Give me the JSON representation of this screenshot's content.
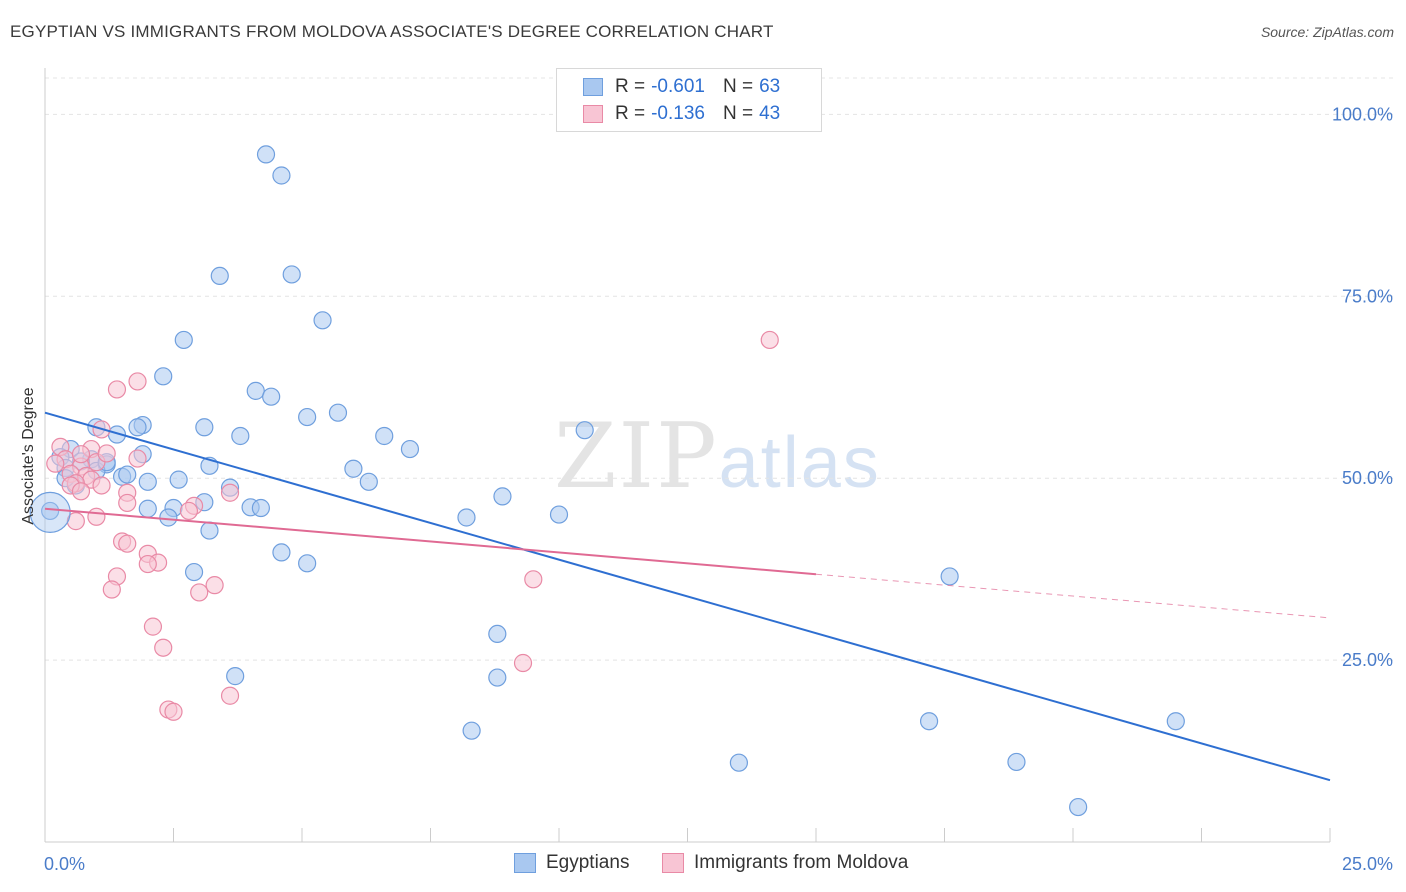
{
  "header": {
    "title": "EGYPTIAN VS IMMIGRANTS FROM MOLDOVA ASSOCIATE'S DEGREE CORRELATION CHART",
    "source": "Source: ZipAtlas.com"
  },
  "watermark": {
    "zip": "ZIP",
    "atlas": "atlas"
  },
  "legend": {
    "rows": [
      {
        "r_label": "R =",
        "r_value": "-0.601",
        "n_label": "N =",
        "n_value": "63",
        "color": "#a9c8f0",
        "border": "#6f9fde"
      },
      {
        "r_label": "R =",
        "r_value": "-0.136",
        "n_label": "N =",
        "n_value": "43",
        "color": "#f8c5d4",
        "border": "#e98aa6"
      }
    ]
  },
  "bottom_legend": [
    {
      "label": "Egyptians",
      "color": "#a9c8f0",
      "border": "#6f9fde"
    },
    {
      "label": "Immigrants from Moldova",
      "color": "#f8c5d4",
      "border": "#e98aa6"
    }
  ],
  "chart_data": {
    "type": "scatter",
    "title": "EGYPTIAN VS IMMIGRANTS FROM MOLDOVA ASSOCIATE'S DEGREE CORRELATION CHART",
    "xlabel": "",
    "ylabel": "Associate's Degree",
    "xlim": [
      0,
      25
    ],
    "ylim": [
      0,
      105
    ],
    "x_tick_labels": [
      "0.0%",
      "25.0%"
    ],
    "y_ticks": [
      25,
      50,
      75,
      100
    ],
    "y_tick_labels": [
      "25.0%",
      "50.0%",
      "75.0%",
      "100.0%"
    ],
    "grid": true,
    "legend_position": "top-center",
    "series": [
      {
        "name": "Egyptians",
        "color": "#a9c8f0",
        "edge": "#6f9fde",
        "trend": {
          "x": [
            0,
            25
          ],
          "y": [
            59.0,
            8.5
          ],
          "color": "#2e6fd1"
        },
        "points": [
          [
            4.3,
            94.5
          ],
          [
            4.6,
            91.6
          ],
          [
            3.4,
            77.8
          ],
          [
            4.8,
            78.0
          ],
          [
            5.4,
            71.7
          ],
          [
            2.7,
            69.0
          ],
          [
            2.3,
            64.0
          ],
          [
            4.1,
            62.0
          ],
          [
            4.4,
            61.2
          ],
          [
            5.7,
            59.0
          ],
          [
            5.1,
            58.4
          ],
          [
            1.9,
            57.3
          ],
          [
            1.8,
            57.0
          ],
          [
            1.0,
            57.0
          ],
          [
            3.1,
            57.0
          ],
          [
            1.4,
            56.0
          ],
          [
            6.6,
            55.8
          ],
          [
            3.8,
            55.8
          ],
          [
            10.5,
            56.6
          ],
          [
            7.1,
            54.0
          ],
          [
            0.5,
            54.0
          ],
          [
            1.9,
            53.3
          ],
          [
            0.3,
            52.9
          ],
          [
            0.9,
            52.6
          ],
          [
            0.7,
            52.3
          ],
          [
            6.0,
            51.3
          ],
          [
            3.2,
            51.7
          ],
          [
            1.2,
            51.9
          ],
          [
            0.4,
            51.4
          ],
          [
            1.0,
            51.0
          ],
          [
            1.5,
            50.2
          ],
          [
            2.0,
            49.5
          ],
          [
            2.6,
            49.8
          ],
          [
            6.3,
            49.5
          ],
          [
            3.6,
            48.7
          ],
          [
            0.6,
            49.0
          ],
          [
            8.9,
            47.5
          ],
          [
            3.1,
            46.7
          ],
          [
            2.0,
            45.8
          ],
          [
            2.5,
            45.9
          ],
          [
            4.0,
            46.0
          ],
          [
            4.2,
            45.9
          ],
          [
            2.4,
            44.6
          ],
          [
            8.2,
            44.6
          ],
          [
            10.0,
            45.0
          ],
          [
            0.1,
            45.5
          ],
          [
            3.2,
            42.8
          ],
          [
            4.6,
            39.8
          ],
          [
            5.1,
            38.3
          ],
          [
            2.9,
            37.1
          ],
          [
            17.6,
            36.5
          ],
          [
            8.8,
            28.6
          ],
          [
            3.7,
            22.8
          ],
          [
            8.8,
            22.6
          ],
          [
            8.3,
            15.3
          ],
          [
            17.2,
            16.6
          ],
          [
            22.0,
            16.6
          ],
          [
            13.5,
            10.9
          ],
          [
            18.9,
            11.0
          ],
          [
            20.1,
            4.8
          ],
          [
            0.4,
            50.0
          ],
          [
            1.6,
            50.5
          ],
          [
            1.2,
            52.2
          ]
        ]
      },
      {
        "name": "Immigrants from Moldova",
        "color": "#f8c5d4",
        "edge": "#e98aa6",
        "trend": {
          "x": [
            0,
            15
          ],
          "y": [
            45.8,
            36.8
          ],
          "x_dash": [
            15,
            25
          ],
          "y_dash": [
            36.8,
            30.8
          ],
          "color": "#e06a93"
        },
        "points": [
          [
            14.1,
            69.0
          ],
          [
            1.8,
            63.3
          ],
          [
            1.4,
            62.2
          ],
          [
            1.1,
            56.7
          ],
          [
            1.8,
            52.7
          ],
          [
            0.3,
            54.3
          ],
          [
            0.9,
            54.0
          ],
          [
            1.0,
            52.2
          ],
          [
            0.4,
            52.6
          ],
          [
            0.7,
            51.6
          ],
          [
            0.5,
            50.6
          ],
          [
            0.8,
            50.3
          ],
          [
            0.9,
            49.8
          ],
          [
            0.6,
            49.3
          ],
          [
            0.5,
            49.0
          ],
          [
            1.1,
            49.0
          ],
          [
            0.7,
            48.2
          ],
          [
            1.6,
            48.0
          ],
          [
            3.6,
            48.0
          ],
          [
            1.6,
            46.6
          ],
          [
            2.9,
            46.2
          ],
          [
            2.8,
            45.5
          ],
          [
            1.0,
            44.7
          ],
          [
            0.6,
            44.1
          ],
          [
            1.5,
            41.3
          ],
          [
            1.6,
            41.0
          ],
          [
            2.0,
            39.6
          ],
          [
            2.2,
            38.4
          ],
          [
            2.0,
            38.2
          ],
          [
            1.4,
            36.5
          ],
          [
            3.3,
            35.3
          ],
          [
            9.5,
            36.1
          ],
          [
            1.3,
            34.7
          ],
          [
            3.0,
            34.3
          ],
          [
            2.1,
            29.6
          ],
          [
            2.3,
            26.7
          ],
          [
            9.3,
            24.6
          ],
          [
            3.6,
            20.1
          ],
          [
            2.4,
            18.2
          ],
          [
            2.5,
            17.9
          ],
          [
            0.2,
            52.0
          ],
          [
            0.7,
            53.3
          ],
          [
            1.2,
            53.4
          ]
        ]
      }
    ]
  }
}
